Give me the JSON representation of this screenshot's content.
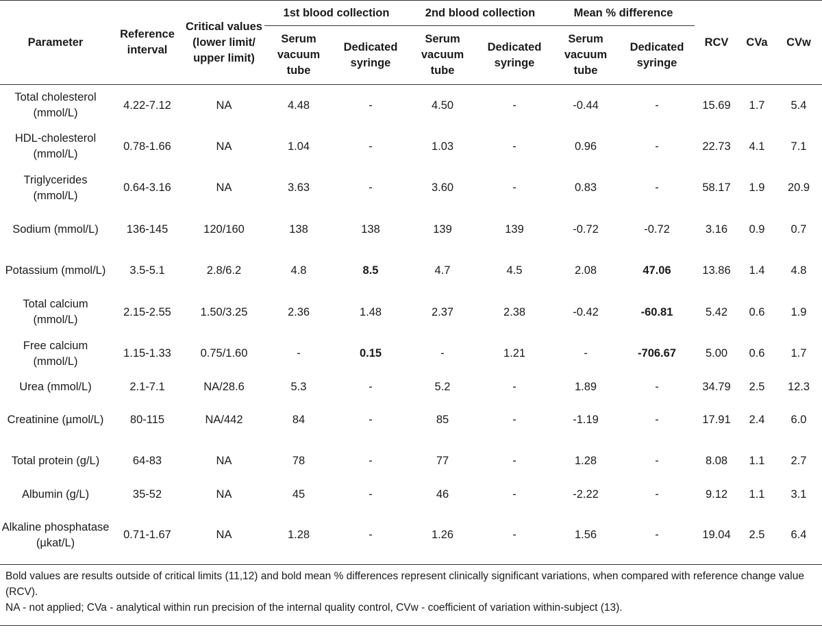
{
  "header": {
    "parameter": "Parameter",
    "reference_interval": "Reference interval",
    "critical_values": "Critical values (lower limit/ upper limit)",
    "first_collection": "1st blood collection",
    "second_collection": "2nd blood collection",
    "mean_diff": "Mean % difference",
    "serum_vacuum_tube": "Serum vacuum tube",
    "dedicated_syringe": "Dedicated syringe",
    "rcv": "RCV",
    "cva": "CVa",
    "cvw": "CVw"
  },
  "rows": [
    {
      "param": "Total cholesterol (mmol/L)",
      "ref": "4.22-7.12",
      "crit": "NA",
      "c1_tube": "4.48",
      "c1_syr": "-",
      "c2_tube": "4.50",
      "c2_syr": "-",
      "diff_tube": "-0.44",
      "diff_syr": "-",
      "rcv": "15.69",
      "cva": "1.7",
      "cvw": "5.4"
    },
    {
      "param": "HDL-cholesterol (mmol/L)",
      "ref": "0.78-1.66",
      "crit": "NA",
      "c1_tube": "1.04",
      "c1_syr": "-",
      "c2_tube": "1.03",
      "c2_syr": "-",
      "diff_tube": "0.96",
      "diff_syr": "-",
      "rcv": "22.73",
      "cva": "4.1",
      "cvw": "7.1"
    },
    {
      "param": "Triglycerides (mmol/L)",
      "ref": "0.64-3.16",
      "crit": "NA",
      "c1_tube": "3.63",
      "c1_syr": "-",
      "c2_tube": "3.60",
      "c2_syr": "-",
      "diff_tube": "0.83",
      "diff_syr": "-",
      "rcv": "58.17",
      "cva": "1.9",
      "cvw": "20.9"
    },
    {
      "param": "Sodium (mmol/L)",
      "ref": "136-145",
      "crit": "120/160",
      "c1_tube": "138",
      "c1_syr": "138",
      "c2_tube": "139",
      "c2_syr": "139",
      "diff_tube": "-0.72",
      "diff_syr": "-0.72",
      "rcv": "3.16",
      "cva": "0.9",
      "cvw": "0.7"
    },
    {
      "param": "Potassium (mmol/L)",
      "ref": "3.5-5.1",
      "crit": "2.8/6.2",
      "c1_tube": "4.8",
      "c1_syr": "8.5",
      "c2_tube": "4.7",
      "c2_syr": "4.5",
      "diff_tube": "2.08",
      "diff_syr": "47.06",
      "rcv": "13.86",
      "cva": "1.4",
      "cvw": "4.8"
    },
    {
      "param": "Total calcium (mmol/L)",
      "ref": "2.15-2.55",
      "crit": "1.50/3.25",
      "c1_tube": "2.36",
      "c1_syr": "1.48",
      "c2_tube": "2.37",
      "c2_syr": "2.38",
      "diff_tube": "-0.42",
      "diff_syr": "-60.81",
      "rcv": "5.42",
      "cva": "0.6",
      "cvw": "1.9"
    },
    {
      "param": "Free calcium (mmol/L)",
      "ref": "1.15-1.33",
      "crit": "0.75/1.60",
      "c1_tube": "-",
      "c1_syr": "0.15",
      "c2_tube": "-",
      "c2_syr": "1.21",
      "diff_tube": "-",
      "diff_syr": "-706.67",
      "rcv": "5.00",
      "cva": "0.6",
      "cvw": "1.7"
    },
    {
      "param": "Urea (mmol/L)",
      "ref": "2.1-7.1",
      "crit": "NA/28.6",
      "c1_tube": "5.3",
      "c1_syr": "-",
      "c2_tube": "5.2",
      "c2_syr": "-",
      "diff_tube": "1.89",
      "diff_syr": "-",
      "rcv": "34.79",
      "cva": "2.5",
      "cvw": "12.3"
    },
    {
      "param": "Creatinine (µmol/L)",
      "ref": "80-115",
      "crit": "NA/442",
      "c1_tube": "84",
      "c1_syr": "-",
      "c2_tube": "85",
      "c2_syr": "-",
      "diff_tube": "-1.19",
      "diff_syr": "-",
      "rcv": "17.91",
      "cva": "2.4",
      "cvw": "6.0"
    },
    {
      "param": "Total protein (g/L)",
      "ref": "64-83",
      "crit": "NA",
      "c1_tube": "78",
      "c1_syr": "-",
      "c2_tube": "77",
      "c2_syr": "-",
      "diff_tube": "1.28",
      "diff_syr": "-",
      "rcv": "8.08",
      "cva": "1.1",
      "cvw": "2.7"
    },
    {
      "param": "Albumin (g/L)",
      "ref": "35-52",
      "crit": "NA",
      "c1_tube": "45",
      "c1_syr": "-",
      "c2_tube": "46",
      "c2_syr": "-",
      "diff_tube": "-2.22",
      "diff_syr": "-",
      "rcv": "9.12",
      "cva": "1.1",
      "cvw": "3.1"
    },
    {
      "param": "Alkaline phosphatase (µkat/L)",
      "ref": "0.71-1.67",
      "crit": "NA",
      "c1_tube": "1.28",
      "c1_syr": "-",
      "c2_tube": "1.26",
      "c2_syr": "-",
      "diff_tube": "1.56",
      "diff_syr": "-",
      "rcv": "19.04",
      "cva": "2.5",
      "cvw": "6.4"
    }
  ],
  "notes": {
    "bold_note": "Bold values are results outside of critical limits (11,12) and bold mean % differences represent clinically significant variations, when compared with reference change value (RCV).",
    "abbrev_note": "NA - not applied; CVa - analytical within run precision of the internal quality control, CVw - coefficient of variation within-subject (13)."
  }
}
